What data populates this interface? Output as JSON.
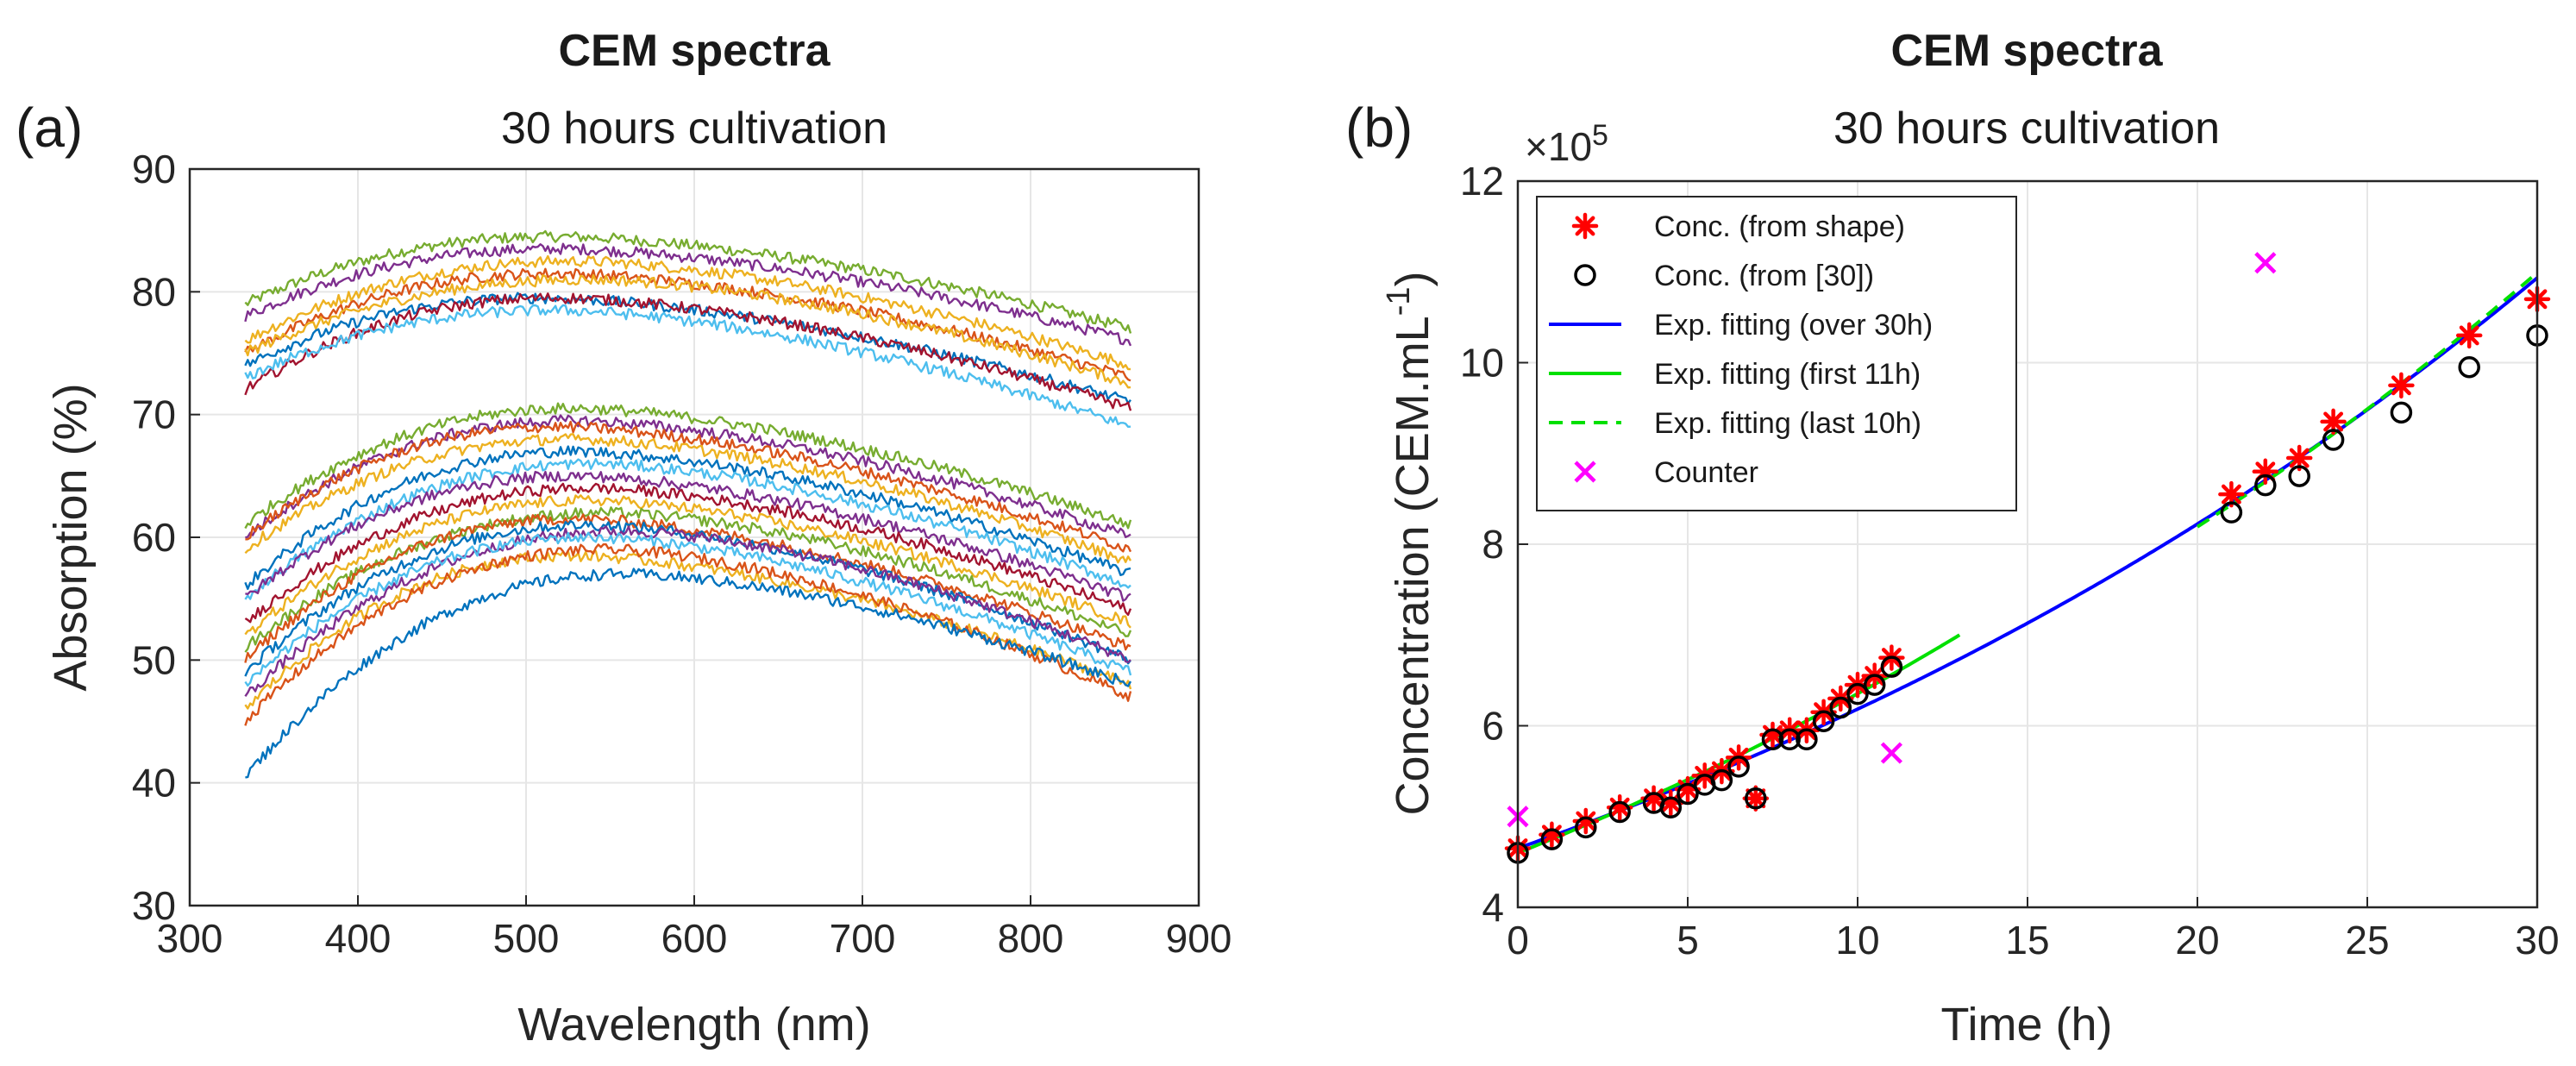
{
  "chart_data": [
    {
      "type": "line",
      "panel_label": "(a)",
      "title": "CEM spectra",
      "subtitle": "30 hours cultivation",
      "xlabel": "Wavelength (nm)",
      "ylabel": "Absorption (%)",
      "xlim": [
        300,
        900
      ],
      "ylim": [
        30,
        90
      ],
      "xticks": [
        300,
        400,
        500,
        600,
        700,
        800,
        900
      ],
      "yticks": [
        30,
        40,
        50,
        60,
        70,
        80,
        90
      ],
      "grid": true,
      "x_range_nm": [
        333,
        860
      ],
      "series_note": "Noisy absorption spectra measured at successive cultivation times; values give absorption at 333 nm, the peak (at peak wavelength) and 860 nm.",
      "series": [
        {
          "color": "#77AC30",
          "start": 79,
          "peak": 84.5,
          "peak_x": 520,
          "end": 77
        },
        {
          "color": "#7E2F8E",
          "start": 78,
          "peak": 83.5,
          "peak_x": 520,
          "end": 76
        },
        {
          "color": "#EDB120",
          "start": 76,
          "peak": 82.5,
          "peak_x": 530,
          "end": 74
        },
        {
          "color": "#D95319",
          "start": 75,
          "peak": 81.5,
          "peak_x": 520,
          "end": 73
        },
        {
          "color": "#EDB120",
          "start": 75,
          "peak": 81,
          "peak_x": 540,
          "end": 72.5
        },
        {
          "color": "#0072BD",
          "start": 74,
          "peak": 79.5,
          "peak_x": 510,
          "end": 71
        },
        {
          "color": "#A2142F",
          "start": 72,
          "peak": 79.5,
          "peak_x": 520,
          "end": 70.5
        },
        {
          "color": "#4DBEEE",
          "start": 73,
          "peak": 78.5,
          "peak_x": 520,
          "end": 69
        },
        {
          "color": "#77AC30",
          "start": 61,
          "peak": 70.5,
          "peak_x": 530,
          "end": 61
        },
        {
          "color": "#7E2F8E",
          "start": 60,
          "peak": 69.5,
          "peak_x": 530,
          "end": 60
        },
        {
          "color": "#D95319",
          "start": 60,
          "peak": 69,
          "peak_x": 520,
          "end": 59
        },
        {
          "color": "#EDB120",
          "start": 59,
          "peak": 68,
          "peak_x": 530,
          "end": 58
        },
        {
          "color": "#0072BD",
          "start": 56,
          "peak": 67,
          "peak_x": 530,
          "end": 57
        },
        {
          "color": "#4DBEEE",
          "start": 55,
          "peak": 66,
          "peak_x": 540,
          "end": 56
        },
        {
          "color": "#7E2F8E",
          "start": 55,
          "peak": 65,
          "peak_x": 530,
          "end": 55
        },
        {
          "color": "#A2142F",
          "start": 53,
          "peak": 64,
          "peak_x": 540,
          "end": 54
        },
        {
          "color": "#EDB120",
          "start": 52,
          "peak": 63,
          "peak_x": 540,
          "end": 53
        },
        {
          "color": "#77AC30",
          "start": 51,
          "peak": 62,
          "peak_x": 550,
          "end": 52
        },
        {
          "color": "#D95319",
          "start": 50,
          "peak": 61.5,
          "peak_x": 530,
          "end": 51
        },
        {
          "color": "#0072BD",
          "start": 49,
          "peak": 61,
          "peak_x": 540,
          "end": 50
        },
        {
          "color": "#7E2F8E",
          "start": 47,
          "peak": 60.5,
          "peak_x": 560,
          "end": 50
        },
        {
          "color": "#4DBEEE",
          "start": 48,
          "peak": 60,
          "peak_x": 540,
          "end": 49
        },
        {
          "color": "#EDB120",
          "start": 46,
          "peak": 58.5,
          "peak_x": 530,
          "end": 48
        },
        {
          "color": "#D95319",
          "start": 45,
          "peak": 59,
          "peak_x": 550,
          "end": 47
        },
        {
          "color": "#0072BD",
          "start": 40.5,
          "peak": 57,
          "peak_x": 560,
          "end": 48
        }
      ]
    },
    {
      "type": "scatter",
      "panel_label": "(b)",
      "title": "CEM spectra",
      "subtitle": "30 hours cultivation",
      "xlabel": "Time (h)",
      "ylabel_main": "Concentration (CEM.mL",
      "ylabel_sup": "-1",
      "ylabel_close": ")",
      "y_multiplier": "×10",
      "y_multiplier_exp": "5",
      "xlim": [
        0,
        30
      ],
      "ylim": [
        4,
        12
      ],
      "xticks": [
        0,
        5,
        10,
        15,
        20,
        25,
        30
      ],
      "yticks": [
        4,
        6,
        8,
        10,
        12
      ],
      "grid": true,
      "legend": [
        {
          "label": "Conc. (from shape)",
          "marker": "*",
          "color": "#FF0000"
        },
        {
          "label": "Conc. (from [30])",
          "marker": "o",
          "color": "#000000"
        },
        {
          "label": "Exp. fitting (over 30h)",
          "line": "solid",
          "color": "#0000FF"
        },
        {
          "label": "Exp. fitting (first 11h)",
          "line": "solid",
          "color": "#00E000"
        },
        {
          "label": "Exp. fitting (last 10h)",
          "line": "dashed",
          "color": "#00E000"
        },
        {
          "label": "Counter",
          "marker": "x",
          "color": "#FF00FF"
        }
      ],
      "series": [
        {
          "name": "Conc. (from shape)",
          "x": [
            0,
            1,
            2,
            3,
            4,
            4.5,
            5,
            5.5,
            6,
            6.5,
            7,
            7.5,
            8,
            8.5,
            9,
            9.5,
            10,
            10.5,
            11,
            21,
            22,
            23,
            24,
            26,
            28,
            30
          ],
          "y": [
            4.65,
            4.8,
            4.95,
            5.1,
            5.2,
            5.15,
            5.3,
            5.45,
            5.5,
            5.65,
            5.2,
            5.9,
            5.95,
            5.95,
            6.15,
            6.3,
            6.45,
            6.55,
            6.75,
            8.55,
            8.8,
            8.95,
            9.35,
            9.75,
            10.3,
            10.7
          ]
        },
        {
          "name": "Conc. (from [30])",
          "x": [
            0,
            1,
            2,
            3,
            4,
            4.5,
            5,
            5.5,
            6,
            6.5,
            7,
            7.5,
            8,
            8.5,
            9,
            9.5,
            10,
            10.5,
            11,
            21,
            22,
            23,
            24,
            26,
            28,
            30
          ],
          "y": [
            4.6,
            4.75,
            4.88,
            5.05,
            5.15,
            5.1,
            5.25,
            5.35,
            5.4,
            5.55,
            5.2,
            5.85,
            5.85,
            5.85,
            6.05,
            6.2,
            6.35,
            6.45,
            6.65,
            8.35,
            8.65,
            8.75,
            9.15,
            9.45,
            9.95,
            10.3
          ]
        },
        {
          "name": "Counter",
          "x": [
            0,
            11,
            22
          ],
          "y": [
            5.0,
            5.7,
            11.1
          ]
        }
      ],
      "fits": [
        {
          "name": "Exp. fitting (over 30h)",
          "x_start": 0,
          "x_end": 30,
          "a": 4.65,
          "b": 0.0285
        },
        {
          "name": "Exp. fitting (first 11h)",
          "x_start": 0,
          "x_end": 13,
          "a": 4.6,
          "b": 0.0323
        },
        {
          "name": "Exp. fitting (last 10h)",
          "x_start": 20,
          "x_end": 30,
          "a": 4.55,
          "b": 0.0294
        }
      ]
    }
  ]
}
